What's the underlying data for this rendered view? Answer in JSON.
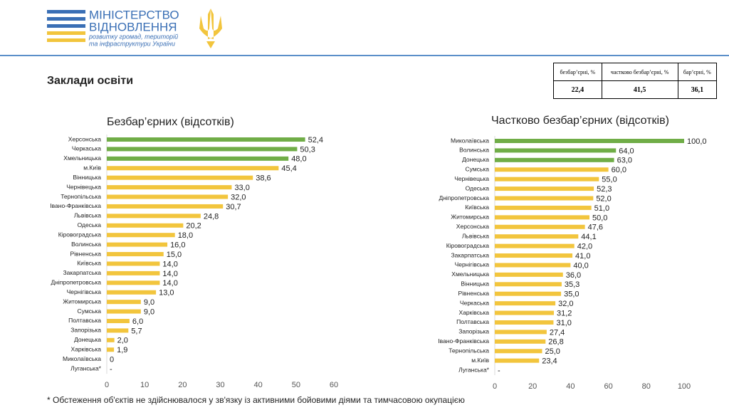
{
  "header": {
    "ministry_line1": "МІНІСТЕРСТВО",
    "ministry_line2": "ВІДНОВЛЕННЯ",
    "ministry_line3": "розвитку громад, територій",
    "ministry_line4": "та інфраструктури України"
  },
  "title": "Заклади освіти",
  "table": {
    "headers": [
      "безбар’єрні, %",
      "частково безбар’єрні, %",
      "бар’єрні, %"
    ],
    "rows": [
      [
        "22,4",
        "41,5",
        "36,1"
      ]
    ]
  },
  "chart_data": [
    {
      "type": "hbar",
      "title": "Безбар’єрних (відсотків)",
      "categories": [
        "Херсонська",
        "Черкаська",
        "Хмельницька",
        "м.Київ",
        "Вінницька",
        "Чернівецька",
        "Тернопільська",
        "Івано-Франківська",
        "Львівська",
        "Одеська",
        "Кіровоградська",
        "Волинська",
        "Рівненська",
        "Київська",
        "Закарпатська",
        "Дніпропетровська",
        "Чернігівська",
        "Житомирська",
        "Сумська",
        "Полтавська",
        "Запорізька",
        "Донецька",
        "Харківська",
        "Миколаївська",
        "Луганська*"
      ],
      "values": [
        52.4,
        50.3,
        48.0,
        45.4,
        38.6,
        33.0,
        32.0,
        30.7,
        24.8,
        20.2,
        18.0,
        16.0,
        15.0,
        14.0,
        14.0,
        14.0,
        13.0,
        9.0,
        9.0,
        6.0,
        5.7,
        2.0,
        1.9,
        0,
        null
      ],
      "value_labels": [
        "52,4",
        "50,3",
        "48,0",
        "45,4",
        "38,6",
        "33,0",
        "32,0",
        "30,7",
        "24,8",
        "20,2",
        "18,0",
        "16,0",
        "15,0",
        "14,0",
        "14,0",
        "14,0",
        "13,0",
        "9,0",
        "9,0",
        "6,0",
        "5,7",
        "2,0",
        "1,9",
        "0",
        "-"
      ],
      "colors": [
        "#70ad47",
        "#70ad47",
        "#70ad47",
        "#f2c53d",
        "#f2c53d",
        "#f2c53d",
        "#f2c53d",
        "#f2c53d",
        "#f2c53d",
        "#f2c53d",
        "#f2c53d",
        "#f2c53d",
        "#f2c53d",
        "#f2c53d",
        "#f2c53d",
        "#f2c53d",
        "#f2c53d",
        "#f2c53d",
        "#f2c53d",
        "#f2c53d",
        "#f2c53d",
        "#f2c53d",
        "#f2c53d",
        "#f2c53d",
        "#f2c53d"
      ],
      "xlim": [
        0,
        60
      ],
      "xticks": [
        0,
        10,
        20,
        30,
        40,
        50,
        60
      ]
    },
    {
      "type": "hbar",
      "title": "Частково безбар’єрних (відсотків)",
      "categories": [
        "Миколаївська",
        "Волинська",
        "Донецька",
        "Сумська",
        "Чернівецька",
        "Одеська",
        "Дніпропетровська",
        "Київська",
        "Житомирська",
        "Херсонська",
        "Львівська",
        "Кіровоградська",
        "Закарпатська",
        "Чернігівська",
        "Хмельницька",
        "Вінницька",
        "Рівненська",
        "Черкаська",
        "Харківська",
        "Полтавська",
        "Запорізька",
        "Івано-Франківська",
        "Тернопільська",
        "м.Київ",
        "Луганська*"
      ],
      "values": [
        100.0,
        64.0,
        63.0,
        60.0,
        55.0,
        52.3,
        52.0,
        51.0,
        50.0,
        47.6,
        44.1,
        42.0,
        41.0,
        40.0,
        36.0,
        35.3,
        35.0,
        32.0,
        31.2,
        31.0,
        27.4,
        26.8,
        25.0,
        23.4,
        null
      ],
      "value_labels": [
        "100,0",
        "64,0",
        "63,0",
        "60,0",
        "55,0",
        "52,3",
        "52,0",
        "51,0",
        "50,0",
        "47,6",
        "44,1",
        "42,0",
        "41,0",
        "40,0",
        "36,0",
        "35,3",
        "35,0",
        "32,0",
        "31,2",
        "31,0",
        "27,4",
        "26,8",
        "25,0",
        "23,4",
        "-"
      ],
      "colors": [
        "#70ad47",
        "#70ad47",
        "#70ad47",
        "#f2c53d",
        "#f2c53d",
        "#f2c53d",
        "#f2c53d",
        "#f2c53d",
        "#f2c53d",
        "#f2c53d",
        "#f2c53d",
        "#f2c53d",
        "#f2c53d",
        "#f2c53d",
        "#f2c53d",
        "#f2c53d",
        "#f2c53d",
        "#f2c53d",
        "#f2c53d",
        "#f2c53d",
        "#f2c53d",
        "#f2c53d",
        "#f2c53d",
        "#f2c53d",
        "#f2c53d"
      ],
      "xlim": [
        0,
        100
      ],
      "xticks": [
        0,
        20,
        40,
        60,
        80,
        100
      ]
    }
  ],
  "footnote": "* Обстеження об'єктів не здійснювалося у зв'язку із активними бойовими діями та тимчасовою окупацією"
}
